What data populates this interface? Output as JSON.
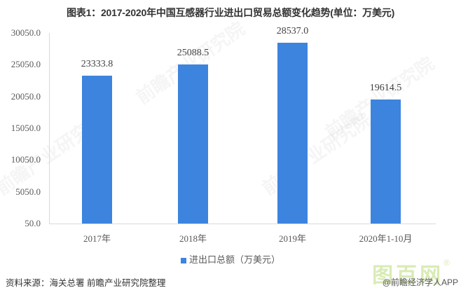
{
  "title": "图表1：2017-2020年中国互感器行业进出口贸易总额变化趋势(单位：万美元)",
  "chart_data": {
    "type": "bar",
    "title": "图表1：2017-2020年中国互感器行业进出口贸易总额变化趋势(单位：万美元)",
    "categories": [
      "2017年",
      "2018年",
      "2019年",
      "2020年1-10月"
    ],
    "series": [
      {
        "name": "进出口总额（万美元）",
        "values": [
          23333.8,
          25088.5,
          28537.0,
          19614.5
        ],
        "labels": [
          "23333.8",
          "25088.5",
          "28537.0",
          "19614.5"
        ],
        "color": "#3d84de"
      }
    ],
    "xlabel": "",
    "ylabel": "",
    "ylim": [
      50.0,
      30050.0
    ],
    "yticks": [
      "30050.0",
      "25050.0",
      "20050.0",
      "15050.0",
      "10050.0",
      "5050.0",
      "50.0"
    ],
    "grid": false,
    "legend_position": "bottom"
  },
  "legend": {
    "label": "进出口总额（万美元）",
    "color": "#3d84de"
  },
  "source": "资料来源：海关总署 前瞻产业研究院整理",
  "watermarks": {
    "site": "图百网",
    "registered": "®",
    "app": "@前瞻经济学人APP",
    "background": "前瞻产业研究院"
  }
}
